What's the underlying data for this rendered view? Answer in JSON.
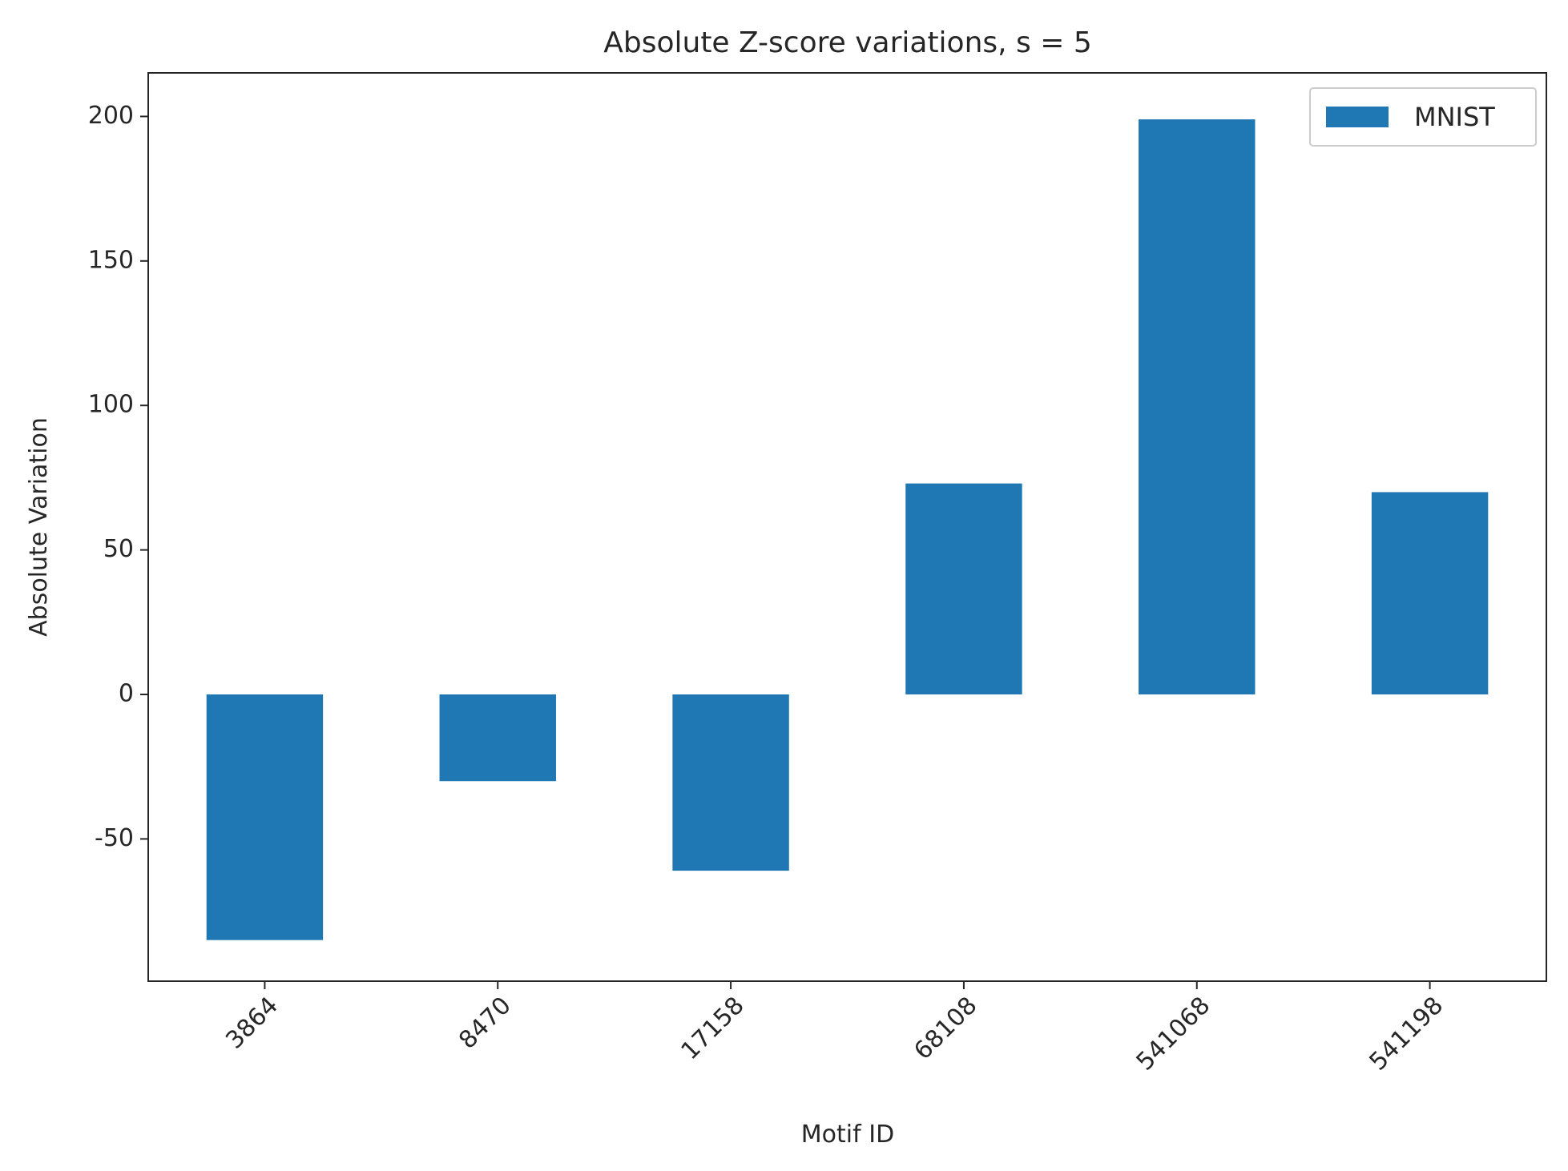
{
  "chart_data": {
    "type": "bar",
    "title": "Absolute Z-score variations, s = 5",
    "xlabel": "Motif ID",
    "ylabel": "Absolute Variation",
    "categories": [
      "3864",
      "8470",
      "17158",
      "68108",
      "541068",
      "541198"
    ],
    "series": [
      {
        "name": "MNIST",
        "values": [
          -85,
          -30,
          -61,
          73,
          199,
          70
        ],
        "color": "#1f77b4"
      }
    ],
    "yticks": [
      -50,
      0,
      50,
      100,
      150,
      200
    ],
    "ytick_labels": [
      "-50",
      "0",
      "50",
      "100",
      "150",
      "200"
    ],
    "ylim": [
      -100,
      200
    ],
    "grid": false,
    "legend_position": "top-right",
    "xtick_rotation": -45
  }
}
